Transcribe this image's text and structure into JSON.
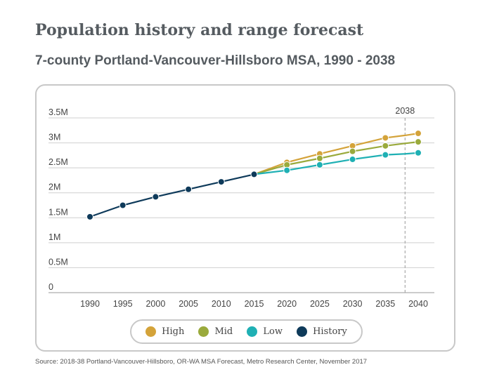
{
  "chart_data": {
    "type": "line",
    "title": "Population history and range forecast",
    "subtitle": "7-county Portland-Vancouver-Hillsboro MSA, 1990 - 2038",
    "x_ticks": [
      "1990",
      "1995",
      "2000",
      "2005",
      "2010",
      "2015",
      "2020",
      "2025",
      "2030",
      "2035",
      "2040"
    ],
    "y_ticks": [
      "0",
      "0.5M",
      "1M",
      "1.5M",
      "2M",
      "2.5M",
      "3M",
      "3.5M"
    ],
    "ylim": [
      0,
      3500000
    ],
    "xlim": [
      1985,
      2042
    ],
    "grid": true,
    "marker_label": "2038",
    "marker_x": 2038,
    "legend_position": "bottom",
    "series": [
      {
        "name": "History",
        "color": "#0e3a5a",
        "x": [
          1990,
          1995,
          2000,
          2005,
          2010,
          2015
        ],
        "values": [
          1520000,
          1750000,
          1920000,
          2070000,
          2220000,
          2370000
        ]
      },
      {
        "name": "High",
        "color": "#d4a33a",
        "x": [
          2015,
          2020,
          2025,
          2030,
          2035,
          2038,
          2040
        ],
        "values": [
          2370000,
          2610000,
          2780000,
          2940000,
          3100000,
          3150000,
          3190000
        ]
      },
      {
        "name": "Mid",
        "color": "#9aaa3c",
        "x": [
          2015,
          2020,
          2025,
          2030,
          2035,
          2038,
          2040
        ],
        "values": [
          2370000,
          2560000,
          2690000,
          2830000,
          2940000,
          2990000,
          3020000
        ]
      },
      {
        "name": "Low",
        "color": "#1fb0b4",
        "x": [
          2015,
          2020,
          2025,
          2030,
          2035,
          2038,
          2040
        ],
        "values": [
          2370000,
          2450000,
          2560000,
          2670000,
          2760000,
          2780000,
          2800000
        ]
      }
    ]
  },
  "legend": [
    {
      "label": "High",
      "color": "#d4a33a"
    },
    {
      "label": "Mid",
      "color": "#9aaa3c"
    },
    {
      "label": "Low",
      "color": "#1fb0b4"
    },
    {
      "label": "History",
      "color": "#0e3a5a"
    }
  ],
  "source": "Source:  2018-38 Portland-Vancouver-Hillsboro, OR-WA MSA Forecast, Metro Research Center, November 2017"
}
